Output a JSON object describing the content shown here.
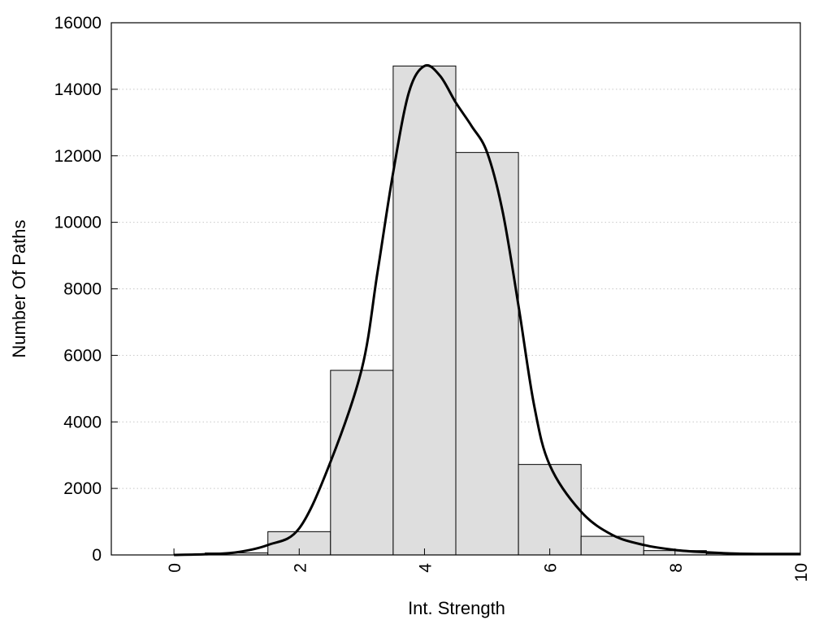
{
  "chart_data": {
    "type": "bar",
    "title": "",
    "xlabel": "Int. Strength",
    "ylabel": "Number Of Paths",
    "xlim": [
      -1,
      10
    ],
    "ylim": [
      0,
      16000
    ],
    "x_ticks": [
      0,
      2,
      4,
      6,
      8,
      10
    ],
    "x_tick_labels": [
      "0",
      "2",
      "4",
      "6",
      "8",
      "10"
    ],
    "y_ticks": [
      0,
      2000,
      4000,
      6000,
      8000,
      10000,
      12000,
      14000,
      16000
    ],
    "y_tick_labels": [
      "0",
      "2000",
      "4000",
      "6000",
      "8000",
      "10000",
      "12000",
      "14000",
      "16000"
    ],
    "grid": "horizontal-dotted",
    "legend": "none",
    "bins": {
      "starts": [
        0,
        0.5,
        1.5,
        2.5,
        3.5,
        4.5,
        5.5,
        6.5,
        7.5,
        8.5
      ],
      "ends": [
        0.5,
        1.5,
        2.5,
        3.5,
        4.5,
        5.5,
        6.5,
        7.5,
        8.5,
        10
      ],
      "values": [
        5,
        60,
        700,
        5550,
        14700,
        12100,
        2720,
        560,
        130,
        40
      ]
    },
    "curve": {
      "type": "line",
      "x": [
        0,
        0.5,
        1,
        1.5,
        2,
        2.5,
        3,
        3.25,
        3.5,
        3.75,
        4,
        4.25,
        4.5,
        4.75,
        5,
        5.25,
        5.5,
        5.75,
        6,
        6.5,
        7,
        7.5,
        8,
        8.5,
        9,
        9.5,
        10
      ],
      "y": [
        0,
        20,
        80,
        300,
        800,
        2800,
        5600,
        8500,
        11500,
        13900,
        14700,
        14400,
        13600,
        12900,
        12100,
        10300,
        7500,
        4500,
        2700,
        1300,
        600,
        300,
        150,
        80,
        40,
        30,
        30
      ]
    },
    "colors": {
      "bar_fill": "#dedede",
      "bar_stroke": "#000000",
      "curve": "#000000",
      "grid": "#c8c8c8",
      "frame": "#000000"
    }
  }
}
